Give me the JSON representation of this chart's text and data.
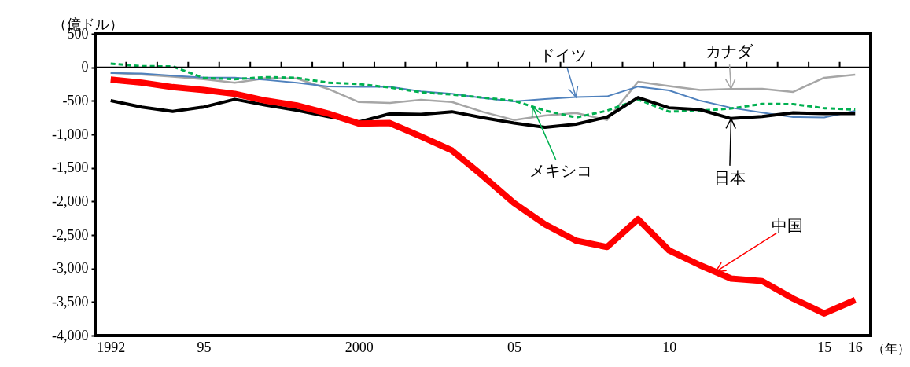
{
  "chart_data": {
    "type": "line",
    "ylabel": "（億ドル）",
    "xlabel": "（年）",
    "x": [
      1992,
      1993,
      1994,
      1995,
      1996,
      1997,
      1998,
      1999,
      2000,
      2001,
      2002,
      2003,
      2004,
      2005,
      2006,
      2007,
      2008,
      2009,
      2010,
      2011,
      2012,
      2013,
      2014,
      2015,
      2016
    ],
    "xlim": [
      1991.5,
      2016.5
    ],
    "xticks": [
      {
        "value": 1992,
        "label": "1992"
      },
      {
        "value": 1995,
        "label": "95"
      },
      {
        "value": 2000,
        "label": "2000"
      },
      {
        "value": 2005,
        "label": "05"
      },
      {
        "value": 2010,
        "label": "10"
      },
      {
        "value": 2015,
        "label": "15"
      },
      {
        "value": 2016,
        "label": "16"
      },
      {
        "value": 1992.5,
        "label": null
      },
      {
        "value": 1993.5,
        "label": null
      },
      {
        "value": 1994.5,
        "label": null
      },
      {
        "value": 1995.5,
        "label": null
      },
      {
        "value": 1996.5,
        "label": null
      },
      {
        "value": 1997.5,
        "label": null
      },
      {
        "value": 1998.5,
        "label": null
      },
      {
        "value": 1999.5,
        "label": null
      },
      {
        "value": 2000.5,
        "label": null
      },
      {
        "value": 2001.5,
        "label": null
      },
      {
        "value": 2002.5,
        "label": null
      },
      {
        "value": 2003.5,
        "label": null
      },
      {
        "value": 2004.5,
        "label": null
      },
      {
        "value": 2005.5,
        "label": null
      },
      {
        "value": 2006.5,
        "label": null
      },
      {
        "value": 2007.5,
        "label": null
      },
      {
        "value": 2008.5,
        "label": null
      },
      {
        "value": 2009.5,
        "label": null
      },
      {
        "value": 2010.5,
        "label": null
      },
      {
        "value": 2011.5,
        "label": null
      },
      {
        "value": 2012.5,
        "label": null
      },
      {
        "value": 2013.5,
        "label": null
      },
      {
        "value": 2014.5,
        "label": null
      },
      {
        "value": 2015.5,
        "label": null
      }
    ],
    "ylim": [
      -4000,
      500
    ],
    "yticks": [
      500,
      0,
      -500,
      {
        "value": -1000,
        "label": "-1,000"
      },
      {
        "value": -1500,
        "label": "-1,500"
      },
      {
        "value": -2000,
        "label": "-2,000"
      },
      {
        "value": -2500,
        "label": "-2,500"
      },
      {
        "value": -3000,
        "label": "-3,000"
      },
      {
        "value": -3500,
        "label": "-3,500"
      },
      {
        "value": -4000,
        "label": "-4,000"
      }
    ],
    "legend": false,
    "marker": "none",
    "series": [
      {
        "color": "#a6a6a6",
        "values": [
          -80,
          -106,
          -140,
          -176,
          -229,
          -163,
          -166,
          -320,
          -517,
          -530,
          -483,
          -517,
          -665,
          -785,
          -719,
          -681,
          -785,
          -215,
          -280,
          -338,
          -322,
          -320,
          -366,
          -155,
          -109
        ]
      },
      {
        "color": "#4f81bd",
        "values": [
          -85,
          -93,
          -123,
          -152,
          -154,
          -187,
          -230,
          -285,
          -292,
          -290,
          -357,
          -394,
          -458,
          -508,
          -473,
          -444,
          -433,
          -287,
          -343,
          -497,
          -603,
          -674,
          -741,
          -748,
          -649
        ]
      },
      {
        "color": "#00b050",
        "line_style": "dashed",
        "values": [
          54,
          17,
          13,
          -158,
          -176,
          -146,
          -157,
          -228,
          -249,
          -300,
          -372,
          -405,
          -451,
          -499,
          -644,
          -747,
          -647,
          -479,
          -661,
          -646,
          -614,
          -546,
          -548,
          -609,
          -630
        ]
      },
      {
        "color": "#000000",
        "values": [
          -496,
          -593,
          -656,
          -592,
          -477,
          -564,
          -640,
          -733,
          -815,
          -693,
          -701,
          -662,
          -752,
          -829,
          -895,
          -847,
          -742,
          -450,
          -603,
          -631,
          -764,
          -733,
          -678,
          -688,
          -689
        ]
      },
      {
        "color": "#ff0000",
        "values": [
          -183,
          -228,
          -295,
          -338,
          -395,
          -497,
          -569,
          -687,
          -838,
          -831,
          -1031,
          -1240,
          -1620,
          -2023,
          -2341,
          -2585,
          -2680,
          -2266,
          -2730,
          -2951,
          -3150,
          -3187,
          -3449,
          -3671,
          -3470
        ]
      }
    ],
    "annotations": [
      {
        "text": "カナダ",
        "x": 2012,
        "y": -322
      },
      {
        "text": "ドイツ",
        "x": 2007,
        "y": -444
      },
      {
        "text": "メキシコ",
        "x": 2005.6,
        "y": -585
      },
      {
        "text": "日本",
        "x": 2012,
        "y": -764
      },
      {
        "text": "中国",
        "x": 2011.5,
        "y": -3050
      }
    ]
  }
}
